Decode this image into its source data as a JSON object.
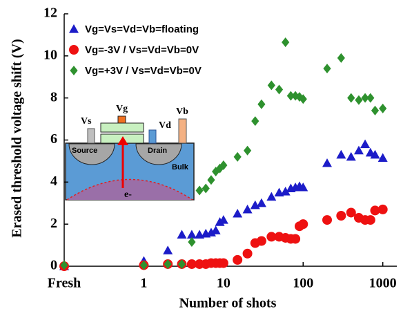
{
  "chart_data": {
    "type": "scatter",
    "x_label": "Number of shots",
    "y_label": "Erased threshold voltage shift (V)",
    "log_x": true,
    "legend": "upper left",
    "xlim": [
      0.1,
      1500
    ],
    "ylim": [
      0,
      12
    ],
    "xticks": [
      {
        "value": 0.1,
        "label": "Fresh"
      },
      1,
      10,
      100,
      1000
    ],
    "yticks": [
      0,
      2,
      4,
      6,
      8,
      10,
      12
    ],
    "x": [
      0.1,
      1,
      2,
      3,
      4,
      5,
      6,
      7,
      8,
      9,
      10,
      15,
      20,
      25,
      30,
      40,
      50,
      60,
      70,
      80,
      90,
      100,
      200,
      300,
      400,
      500,
      600,
      700,
      800,
      1000
    ],
    "series": [
      {
        "name": "Vg=Vs=Vd=Vb=floating",
        "color": "#1c1cc8",
        "marker": "triangle",
        "values": [
          0,
          0.25,
          0.75,
          1.5,
          1.5,
          1.5,
          1.55,
          1.6,
          1.7,
          2.1,
          2.2,
          2.5,
          2.7,
          2.9,
          3.0,
          3.3,
          3.5,
          3.55,
          3.7,
          3.75,
          3.8,
          3.75,
          4.9,
          5.3,
          5.2,
          5.5,
          5.8,
          5.4,
          5.3,
          5.15
        ]
      },
      {
        "name": "Vg=-3V / Vs=Vd=Vb=0V",
        "color": "#ee1111",
        "marker": "circle",
        "values": [
          0,
          0.05,
          0.1,
          0.1,
          0.1,
          0.1,
          0.1,
          0.15,
          0.15,
          0.15,
          0.15,
          0.3,
          0.6,
          1.1,
          1.2,
          1.4,
          1.4,
          1.35,
          1.3,
          1.3,
          1.9,
          2.0,
          2.2,
          2.4,
          2.55,
          2.3,
          2.2,
          2.2,
          2.65,
          2.7
        ]
      },
      {
        "name": "Vg=+3V / Vs=Vd=Vb=0V",
        "color": "#2e912e",
        "marker": "diamond",
        "values": [
          0.05,
          0.05,
          0.1,
          0.1,
          1.15,
          3.6,
          3.7,
          4.1,
          4.5,
          4.65,
          4.8,
          5.2,
          5.5,
          6.9,
          7.7,
          8.6,
          8.4,
          10.65,
          8.1,
          8.1,
          8.05,
          7.95,
          9.4,
          9.9,
          8.0,
          7.9,
          8.0,
          8.0,
          7.4,
          7.5
        ]
      }
    ]
  },
  "inset": {
    "vs": "Vs",
    "vg": "Vg",
    "vd": "Vd",
    "vb": "Vb",
    "source": "Source",
    "drain": "Drain",
    "bulk": "Bulk",
    "electron": "e-"
  }
}
